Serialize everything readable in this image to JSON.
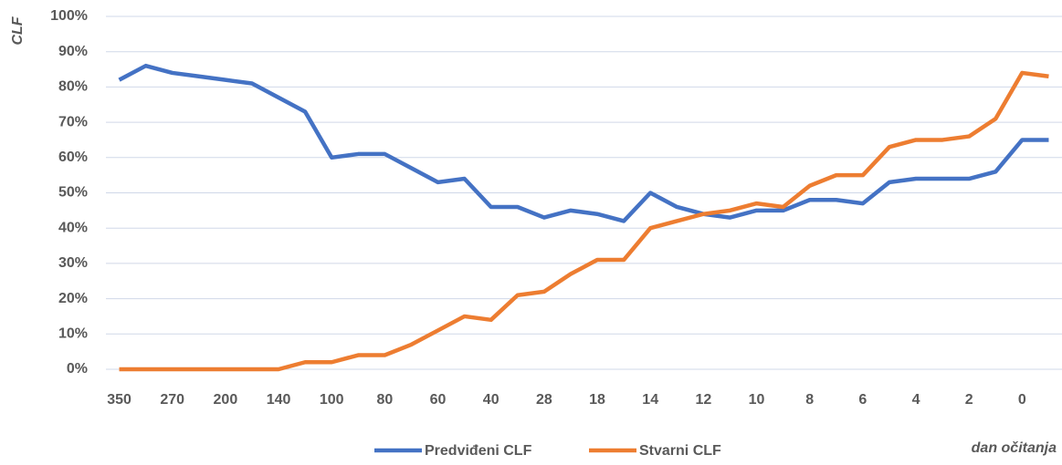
{
  "chart_data": {
    "type": "line",
    "y_label": "CLF",
    "x_label": "dan očitanja",
    "categories": [
      "350",
      null,
      "270",
      null,
      "200",
      null,
      "140",
      null,
      "100",
      null,
      "80",
      null,
      "60",
      null,
      "40",
      null,
      "28",
      null,
      "18",
      null,
      "14",
      null,
      "12",
      null,
      "10",
      null,
      "8",
      null,
      "6",
      null,
      "4",
      null,
      "2",
      null,
      "0",
      null
    ],
    "series": [
      {
        "name": "Predviđeni CLF",
        "color": "#4472c4",
        "values": [
          82,
          86,
          84,
          83,
          82,
          81,
          77,
          73,
          60,
          61,
          61,
          57,
          53,
          54,
          46,
          46,
          43,
          45,
          44,
          42,
          50,
          46,
          44,
          43,
          45,
          45,
          48,
          48,
          47,
          53,
          54,
          54,
          54,
          56,
          65,
          65
        ]
      },
      {
        "name": "Stvarni CLF",
        "color": "#ed7d31",
        "values": [
          0,
          0,
          0,
          0,
          0,
          0,
          0,
          2,
          2,
          4,
          4,
          7,
          11,
          15,
          14,
          21,
          22,
          27,
          31,
          31,
          40,
          42,
          44,
          45,
          47,
          46,
          52,
          55,
          55,
          63,
          65,
          65,
          66,
          71,
          84,
          83
        ]
      }
    ],
    "ylim": [
      0,
      100
    ],
    "yticks": [
      {
        "value": 0,
        "label": "0%"
      },
      {
        "value": 10,
        "label": "10%"
      },
      {
        "value": 20,
        "label": "20%"
      },
      {
        "value": 30,
        "label": "30%"
      },
      {
        "value": 40,
        "label": "40%"
      },
      {
        "value": 50,
        "label": "50%"
      },
      {
        "value": 60,
        "label": "60%"
      },
      {
        "value": 70,
        "label": "70%"
      },
      {
        "value": 80,
        "label": "80%"
      },
      {
        "value": 90,
        "label": "90%"
      },
      {
        "value": 100,
        "label": "100%"
      }
    ],
    "grid": true,
    "legend": "bottom"
  }
}
